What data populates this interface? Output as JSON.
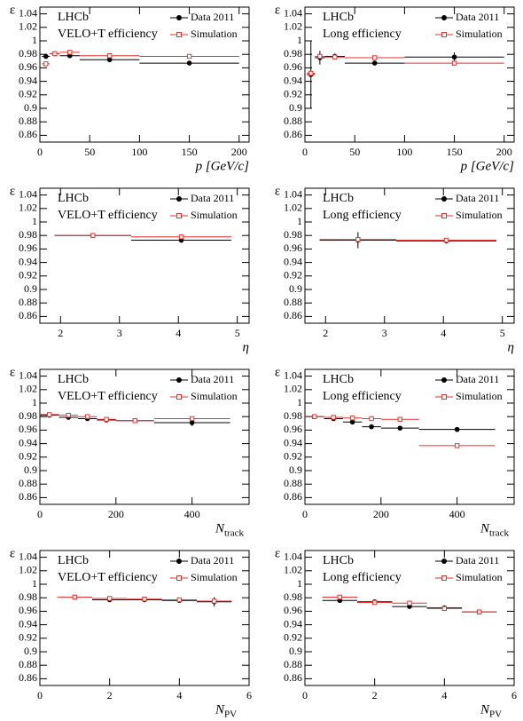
{
  "chart_data": [
    {
      "type": "errorbar",
      "annotations": [
        "LHCb",
        "VELO+T efficiency"
      ],
      "ylabel": "ε",
      "xlabel": "p [GeV/c]",
      "xlim": [
        0,
        210
      ],
      "xticks": [
        0,
        50,
        100,
        150,
        200
      ],
      "ylim": [
        0.85,
        1.05
      ],
      "yticks": [
        0.86,
        0.88,
        0.9,
        0.92,
        0.94,
        0.96,
        0.98,
        1,
        1.02,
        1.04
      ],
      "series": [
        {
          "name": "Data 2011",
          "color": "#000000",
          "marker": "filled",
          "x_low": [
            2,
            10,
            20,
            40,
            100
          ],
          "x_high": [
            10,
            20,
            40,
            100,
            200
          ],
          "values": [
            0.977,
            0.981,
            0.978,
            0.972,
            0.967
          ],
          "errors": [
            0.002,
            0.001,
            0.001,
            0.001,
            0.001
          ]
        },
        {
          "name": "Simulation",
          "color": "#e8312f",
          "marker": "open",
          "x_low": [
            2,
            10,
            20,
            40,
            100
          ],
          "x_high": [
            10,
            20,
            40,
            100,
            200
          ],
          "values": [
            0.966,
            0.981,
            0.983,
            0.978,
            0.977
          ],
          "errors": [
            0.002,
            0.001,
            0.001,
            0.001,
            0.001
          ]
        }
      ]
    },
    {
      "type": "errorbar",
      "annotations": [
        "LHCb",
        "Long efficiency"
      ],
      "ylabel": "ε",
      "xlabel": "p [GeV/c]",
      "xlim": [
        0,
        210
      ],
      "xticks": [
        0,
        50,
        100,
        150,
        200
      ],
      "ylim": [
        0.85,
        1.05
      ],
      "yticks": [
        0.86,
        0.88,
        0.9,
        0.92,
        0.94,
        0.96,
        0.98,
        1,
        1.02,
        1.04
      ],
      "series": [
        {
          "name": "Data 2011",
          "color": "#000000",
          "marker": "filled",
          "x_low": [
            2,
            10,
            20,
            40,
            100
          ],
          "x_high": [
            10,
            20,
            40,
            100,
            200
          ],
          "values": [
            0.95,
            0.975,
            0.977,
            0.967,
            0.976
          ],
          "errors": [
            0.05,
            0.01,
            0.004,
            0.001,
            0.007
          ]
        },
        {
          "name": "Simulation",
          "color": "#e8312f",
          "marker": "open",
          "x_low": [
            2,
            10,
            20,
            40,
            100
          ],
          "x_high": [
            10,
            20,
            40,
            100,
            200
          ],
          "values": [
            0.952,
            0.977,
            0.976,
            0.975,
            0.967
          ],
          "errors": [
            0.003,
            0.002,
            0.001,
            0.001,
            0.004
          ]
        }
      ]
    },
    {
      "type": "errorbar",
      "annotations": [
        "LHCb",
        "VELO+T efficiency"
      ],
      "ylabel": "ε",
      "xlabel": "η",
      "xlim": [
        1.65,
        5.2
      ],
      "xticks": [
        2,
        3,
        4,
        5
      ],
      "ylim": [
        0.85,
        1.05
      ],
      "yticks": [
        0.86,
        0.88,
        0.9,
        0.92,
        0.94,
        0.96,
        0.98,
        1,
        1.02,
        1.04
      ],
      "series": [
        {
          "name": "Data 2011",
          "color": "#000000",
          "marker": "filled",
          "x_low": [
            1.9,
            3.2
          ],
          "x_high": [
            3.2,
            4.9
          ],
          "values": [
            0.98,
            0.973
          ],
          "errors": [
            0.001,
            0.002
          ]
        },
        {
          "name": "Simulation",
          "color": "#e8312f",
          "marker": "open",
          "x_low": [
            1.9,
            3.2
          ],
          "x_high": [
            3.2,
            4.9
          ],
          "values": [
            0.98,
            0.978
          ],
          "errors": [
            0.001,
            0.001
          ]
        }
      ]
    },
    {
      "type": "errorbar",
      "annotations": [
        "LHCb",
        "Long efficiency"
      ],
      "ylabel": "ε",
      "xlabel": "η",
      "xlim": [
        1.65,
        5.2
      ],
      "xticks": [
        2,
        3,
        4,
        5
      ],
      "ylim": [
        0.85,
        1.05
      ],
      "yticks": [
        0.86,
        0.88,
        0.9,
        0.92,
        0.94,
        0.96,
        0.98,
        1,
        1.02,
        1.04
      ],
      "series": [
        {
          "name": "Data 2011",
          "color": "#000000",
          "marker": "filled",
          "x_low": [
            1.9,
            3.2
          ],
          "x_high": [
            3.2,
            4.9
          ],
          "values": [
            0.973,
            0.972
          ],
          "errors": [
            0.012,
            0.004
          ]
        },
        {
          "name": "Simulation",
          "color": "#e8312f",
          "marker": "open",
          "x_low": [
            1.9,
            3.2
          ],
          "x_high": [
            3.2,
            4.9
          ],
          "values": [
            0.974,
            0.973
          ],
          "errors": [
            0.001,
            0.001
          ]
        }
      ]
    },
    {
      "type": "errorbar",
      "annotations": [
        "LHCb",
        "VELO+T efficiency"
      ],
      "ylabel": "ε",
      "xlabel": "N",
      "xlabel_sub": "track",
      "xlim": [
        0,
        550
      ],
      "xticks": [
        0,
        200,
        400
      ],
      "ylim": [
        0.85,
        1.05
      ],
      "yticks": [
        0.86,
        0.88,
        0.9,
        0.92,
        0.94,
        0.96,
        0.98,
        1,
        1.02,
        1.04
      ],
      "series": [
        {
          "name": "Data 2011",
          "color": "#000000",
          "marker": "filled",
          "x_low": [
            0,
            50,
            100,
            150,
            200,
            300
          ],
          "x_high": [
            50,
            100,
            150,
            200,
            300,
            500
          ],
          "values": [
            0.982,
            0.979,
            0.977,
            0.975,
            0.974,
            0.971
          ],
          "errors": [
            0.001,
            0.001,
            0.001,
            0.001,
            0.001,
            0.005
          ]
        },
        {
          "name": "Simulation",
          "color": "#e8312f",
          "marker": "open",
          "x_low": [
            0,
            50,
            100,
            150,
            200,
            300
          ],
          "x_high": [
            50,
            100,
            150,
            200,
            300,
            500
          ],
          "values": [
            0.983,
            0.982,
            0.98,
            0.976,
            0.974,
            0.977
          ],
          "errors": [
            0.001,
            0.001,
            0.001,
            0.001,
            0.001,
            0.001
          ]
        }
      ]
    },
    {
      "type": "errorbar",
      "annotations": [
        "LHCb",
        "Long efficiency"
      ],
      "ylabel": "ε",
      "xlabel": "N",
      "xlabel_sub": "track",
      "xlim": [
        0,
        550
      ],
      "xticks": [
        0,
        200,
        400
      ],
      "ylim": [
        0.85,
        1.05
      ],
      "yticks": [
        0.86,
        0.88,
        0.9,
        0.92,
        0.94,
        0.96,
        0.98,
        1,
        1.02,
        1.04
      ],
      "series": [
        {
          "name": "Data 2011",
          "color": "#000000",
          "marker": "filled",
          "x_low": [
            0,
            50,
            100,
            150,
            200,
            300
          ],
          "x_high": [
            50,
            100,
            150,
            200,
            300,
            500
          ],
          "values": [
            0.98,
            0.977,
            0.972,
            0.965,
            0.963,
            0.961
          ],
          "errors": [
            0.001,
            0.001,
            0.001,
            0.001,
            0.001,
            0.001
          ]
        },
        {
          "name": "Simulation",
          "color": "#e8312f",
          "marker": "open",
          "x_low": [
            0,
            50,
            100,
            150,
            200,
            300
          ],
          "x_high": [
            50,
            100,
            150,
            200,
            300,
            500
          ],
          "values": [
            0.98,
            0.979,
            0.978,
            0.977,
            0.976,
            0.937
          ],
          "errors": [
            0.001,
            0.001,
            0.001,
            0.001,
            0.001,
            0.003
          ]
        }
      ]
    },
    {
      "type": "errorbar",
      "annotations": [
        "LHCb",
        "VELO+T efficiency"
      ],
      "ylabel": "ε",
      "xlabel": "N",
      "xlabel_sub": "PV",
      "xlim": [
        0,
        6
      ],
      "xticks": [
        0,
        2,
        4,
        6
      ],
      "ylim": [
        0.85,
        1.05
      ],
      "yticks": [
        0.86,
        0.88,
        0.9,
        0.92,
        0.94,
        0.96,
        0.98,
        1,
        1.02,
        1.04
      ],
      "series": [
        {
          "name": "Data 2011",
          "color": "#000000",
          "marker": "filled",
          "x_low": [
            0.5,
            1.5,
            2.5,
            3.5,
            4.5
          ],
          "x_high": [
            1.5,
            2.5,
            3.5,
            4.5,
            5.5
          ],
          "values": [
            0.981,
            0.977,
            0.977,
            0.976,
            0.974
          ],
          "errors": [
            0.001,
            0.001,
            0.001,
            0.001,
            0.007
          ]
        },
        {
          "name": "Simulation",
          "color": "#e8312f",
          "marker": "open",
          "x_low": [
            0.5,
            1.5,
            2.5,
            3.5,
            4.5
          ],
          "x_high": [
            1.5,
            2.5,
            3.5,
            4.5,
            5.5
          ],
          "values": [
            0.981,
            0.979,
            0.978,
            0.977,
            0.975
          ],
          "errors": [
            0.001,
            0.001,
            0.001,
            0.001,
            0.002
          ]
        }
      ]
    },
    {
      "type": "errorbar",
      "annotations": [
        "LHCb",
        "Long efficiency"
      ],
      "ylabel": "ε",
      "xlabel": "N",
      "xlabel_sub": "PV",
      "xlim": [
        0,
        6
      ],
      "xticks": [
        0,
        2,
        4,
        6
      ],
      "ylim": [
        0.85,
        1.05
      ],
      "yticks": [
        0.86,
        0.88,
        0.9,
        0.92,
        0.94,
        0.96,
        0.98,
        1,
        1.02,
        1.04
      ],
      "series": [
        {
          "name": "Data 2011",
          "color": "#000000",
          "marker": "filled",
          "x_low": [
            0.5,
            1.5,
            2.5,
            3.5,
            4.5
          ],
          "x_high": [
            1.5,
            2.5,
            3.5,
            4.5,
            5.5
          ],
          "values": [
            0.976,
            0.974,
            0.967,
            0.965,
            0.959
          ],
          "errors": [
            0.001,
            0.001,
            0.001,
            0.001,
            0.003
          ]
        },
        {
          "name": "Simulation",
          "color": "#e8312f",
          "marker": "open",
          "x_low": [
            0.5,
            1.5,
            2.5,
            3.5,
            4.5
          ],
          "x_high": [
            1.5,
            2.5,
            3.5,
            4.5,
            5.5
          ],
          "values": [
            0.981,
            0.973,
            0.972,
            0.964,
            0.959
          ],
          "errors": [
            0.001,
            0.001,
            0.001,
            0.001,
            0.002
          ]
        }
      ]
    }
  ]
}
